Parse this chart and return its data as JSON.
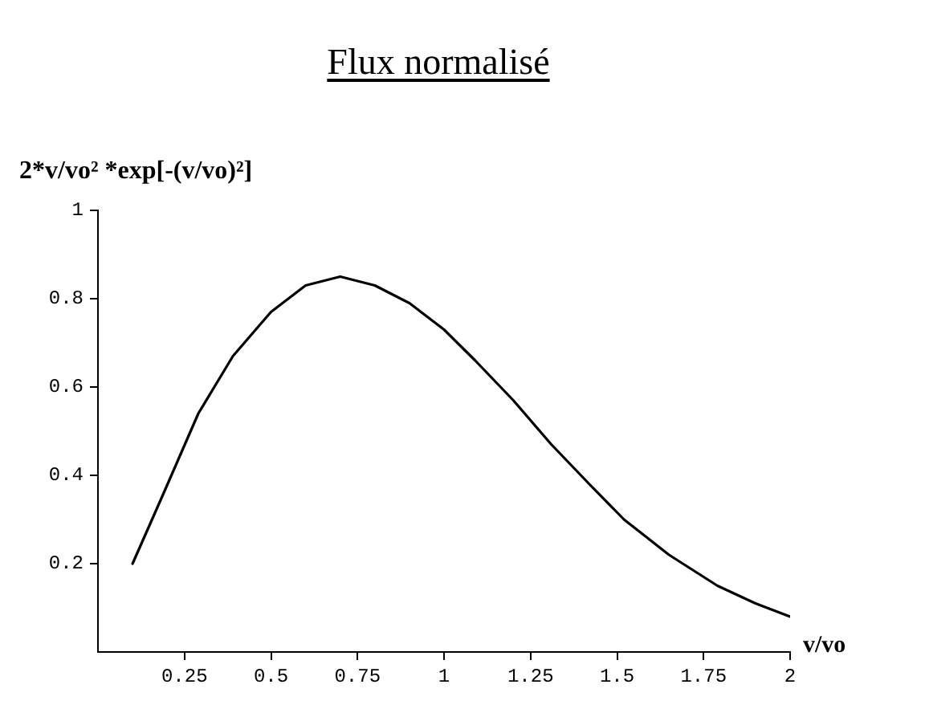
{
  "chart_data": {
    "type": "line",
    "title": "Flux normalisé",
    "xlabel": "v/vo",
    "ylabel": "2*v/vo² *exp[-(v/vo)²]",
    "x": [
      0.1,
      0.19,
      0.29,
      0.39,
      0.5,
      0.6,
      0.7,
      0.8,
      0.9,
      1.0,
      1.09,
      1.2,
      1.31,
      1.42,
      1.52,
      1.65,
      1.79,
      1.9,
      2.0
    ],
    "values": [
      0.2,
      0.36,
      0.54,
      0.67,
      0.77,
      0.83,
      0.85,
      0.83,
      0.79,
      0.73,
      0.66,
      0.57,
      0.47,
      0.38,
      0.3,
      0.22,
      0.15,
      0.11,
      0.08
    ],
    "color": "#000000",
    "xlim": [
      0,
      2
    ],
    "ylim": [
      0,
      1
    ],
    "xticks": [
      0.25,
      0.5,
      0.75,
      1,
      1.25,
      1.5,
      1.75,
      2
    ],
    "yticks": [
      0.2,
      0.4,
      0.6,
      0.8,
      1
    ],
    "marker": "none",
    "line_style": "solid"
  }
}
